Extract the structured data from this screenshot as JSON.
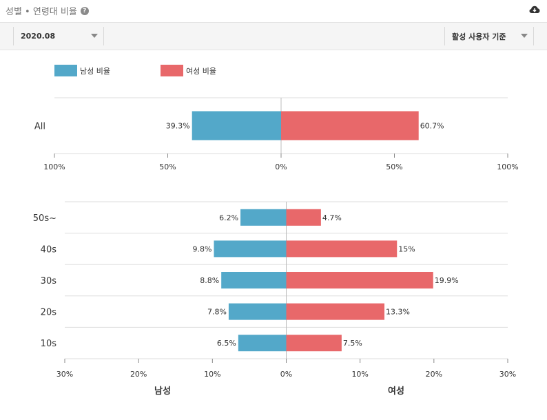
{
  "header": {
    "title": "성별 • 연령대 비율",
    "help_icon": "help-icon",
    "download_icon": "cloud-download-icon"
  },
  "toolbar": {
    "date_value": "2020.08",
    "basis_value": "활성 사용자 기준"
  },
  "colors": {
    "male": "#53a8c9",
    "female": "#e8686a",
    "grid": "#dddddd",
    "axis": "#bbbbbb"
  },
  "chart_data": [
    {
      "type": "bar",
      "orientation": "horizontal-diverging",
      "categories": [
        "All"
      ],
      "series": [
        {
          "name": "남성 비율",
          "values": [
            39.3
          ]
        },
        {
          "name": "여성 비율",
          "values": [
            60.7
          ]
        }
      ],
      "value_labels": {
        "male": [
          "39.3%"
        ],
        "female": [
          "60.7%"
        ]
      },
      "xlim": [
        -100,
        100
      ],
      "ticks": [
        "100%",
        "50%",
        "0%",
        "50%",
        "100%"
      ],
      "legend": "top-left"
    },
    {
      "type": "bar",
      "orientation": "horizontal-diverging",
      "categories": [
        "50s~",
        "40s",
        "30s",
        "20s",
        "10s"
      ],
      "series": [
        {
          "name": "남성",
          "values": [
            6.2,
            9.8,
            8.8,
            7.8,
            6.5
          ]
        },
        {
          "name": "여성",
          "values": [
            4.7,
            15,
            19.9,
            13.3,
            7.5
          ]
        }
      ],
      "value_labels": {
        "male": [
          "6.2%",
          "9.8%",
          "8.8%",
          "7.8%",
          "6.5%"
        ],
        "female": [
          "4.7%",
          "15%",
          "19.9%",
          "13.3%",
          "7.5%"
        ]
      },
      "xlim": [
        -30,
        30
      ],
      "ticks": [
        "30%",
        "20%",
        "10%",
        "0%",
        "10%",
        "20%",
        "30%"
      ],
      "xlabel_left": "남성",
      "xlabel_right": "여성"
    }
  ]
}
